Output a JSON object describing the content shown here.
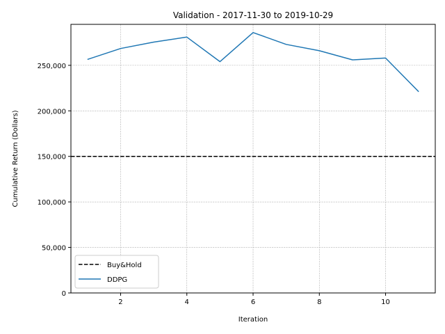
{
  "chart_data": {
    "type": "line",
    "title": "Validation - 2017-11-30 to 2019-10-29",
    "xlabel": "Iteration",
    "ylabel": "Cumulative Return (Dollars)",
    "xlim": [
      0.5,
      11.5
    ],
    "ylim": [
      0,
      295000
    ],
    "x_ticks": [
      2,
      4,
      6,
      8,
      10
    ],
    "y_ticks": [
      0,
      50000,
      100000,
      150000,
      200000,
      250000
    ],
    "y_tick_labels": [
      "0",
      "50,000",
      "100,000",
      "150,000",
      "200,000",
      "250,000"
    ],
    "grid": true,
    "legend_position": "lower-left",
    "reference_line": {
      "name": "Buy&Hold",
      "y": 150000,
      "color": "#000000",
      "style": "dashed"
    },
    "series": [
      {
        "name": "DDPG",
        "color": "#1f77b4",
        "x": [
          1,
          2,
          3,
          4,
          5,
          6,
          7,
          8,
          9,
          10,
          11
        ],
        "values": [
          256500,
          268500,
          275500,
          281000,
          254000,
          286000,
          273000,
          266000,
          256000,
          258000,
          221000
        ]
      }
    ]
  }
}
